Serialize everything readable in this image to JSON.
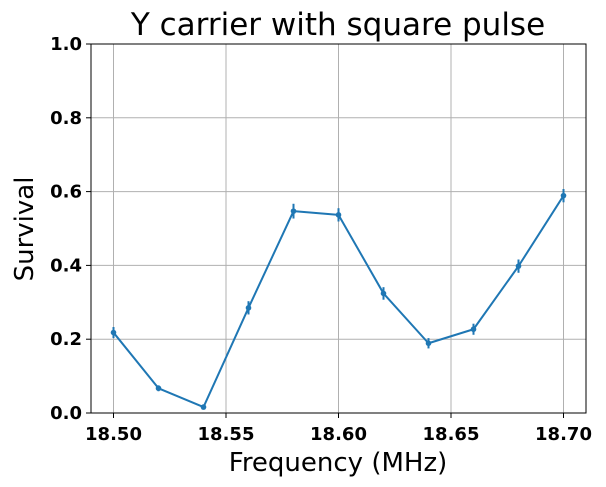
{
  "chart_data": {
    "type": "line",
    "title": "Y carrier with square pulse",
    "xlabel": "Frequency (MHz)",
    "ylabel": "Survival",
    "xlim": [
      18.49,
      18.71
    ],
    "ylim": [
      0.0,
      1.0
    ],
    "grid": true,
    "x_ticks": [
      18.5,
      18.55,
      18.6,
      18.65,
      18.7
    ],
    "x_tick_labels": [
      "18.50",
      "18.55",
      "18.60",
      "18.65",
      "18.70"
    ],
    "y_ticks": [
      0.0,
      0.2,
      0.4,
      0.6,
      0.8,
      1.0
    ],
    "y_tick_labels": [
      "0.0",
      "0.2",
      "0.4",
      "0.6",
      "0.8",
      "1.0"
    ],
    "series": [
      {
        "color": "#1f77b4",
        "x": [
          18.5,
          18.52,
          18.54,
          18.56,
          18.58,
          18.6,
          18.62,
          18.64,
          18.66,
          18.68,
          18.7
        ],
        "y": [
          0.218,
          0.067,
          0.016,
          0.285,
          0.547,
          0.537,
          0.324,
          0.189,
          0.227,
          0.398,
          0.589
        ],
        "yerr": [
          0.015,
          0.008,
          0.004,
          0.018,
          0.02,
          0.018,
          0.017,
          0.014,
          0.015,
          0.018,
          0.018
        ]
      }
    ]
  }
}
